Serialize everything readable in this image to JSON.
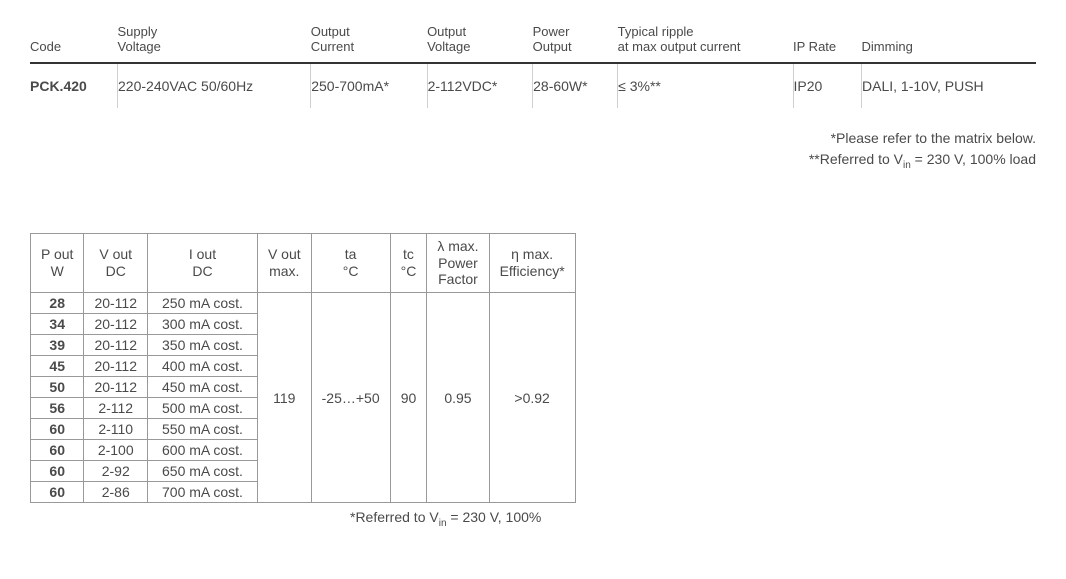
{
  "spec": {
    "headers": {
      "code": "Code",
      "supply_l1": "Supply",
      "supply_l2": "Voltage",
      "outcur_l1": "Output",
      "outcur_l2": "Current",
      "outvol_l1": "Output",
      "outvol_l2": "Voltage",
      "power_l1": "Power",
      "power_l2": "Output",
      "ripple_l1": "Typical ripple",
      "ripple_l2": "at max output current",
      "ip": "IP Rate",
      "dimming": "Dimming"
    },
    "row": {
      "code": "PCK.420",
      "supply": "220-240VAC 50/60Hz",
      "outcur": "250-700mA*",
      "outvol": "2-112VDC*",
      "power": "28-60W*",
      "ripple": "≤ 3%**",
      "ip": "IP20",
      "dimming": "DALI, 1-10V, PUSH"
    }
  },
  "footnotes": {
    "f1": "*Please refer to the matrix below.",
    "f2_pre": "**Referred to V",
    "f2_sub": "in",
    "f2_post": " = 230 V, 100% load"
  },
  "matrix": {
    "headers": {
      "pout_l1": "P out",
      "pout_l2": "W",
      "vout_l1": "V out",
      "vout_l2": "DC",
      "iout_l1": "I out",
      "iout_l2": "DC",
      "voutmax_l1": "V out",
      "voutmax_l2": "max.",
      "ta_l1": "ta",
      "ta_l2": "°C",
      "tc_l1": "tc",
      "tc_l2": "°C",
      "lambda_l1": "λ max.",
      "lambda_l2": "Power",
      "lambda_l3": "Factor",
      "eta_l1": "η max.",
      "eta_l2": "Efficiency*"
    },
    "rows": [
      {
        "pout": "28",
        "vout": "20-112",
        "iout": "250 mA cost."
      },
      {
        "pout": "34",
        "vout": "20-112",
        "iout": "300 mA cost."
      },
      {
        "pout": "39",
        "vout": "20-112",
        "iout": "350 mA cost."
      },
      {
        "pout": "45",
        "vout": "20-112",
        "iout": "400 mA cost."
      },
      {
        "pout": "50",
        "vout": "20-112",
        "iout": "450 mA cost."
      },
      {
        "pout": "56",
        "vout": "2-112",
        "iout": "500 mA cost."
      },
      {
        "pout": "60",
        "vout": "2-110",
        "iout": "550 mA cost."
      },
      {
        "pout": "60",
        "vout": "2-100",
        "iout": "600 mA cost."
      },
      {
        "pout": "60",
        "vout": "2-92",
        "iout": "650 mA cost."
      },
      {
        "pout": "60",
        "vout": "2-86",
        "iout": "700 mA cost."
      }
    ],
    "shared": {
      "voutmax": "119",
      "ta": "-25…+50",
      "tc": "90",
      "lambda": "0.95",
      "eta": ">0.92"
    },
    "note_pre": "*Referred to V",
    "note_sub": "in",
    "note_post": " = 230 V, 100%"
  }
}
